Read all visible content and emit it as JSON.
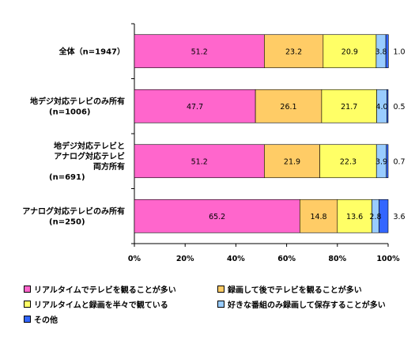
{
  "chart_data": {
    "type": "bar",
    "orientation": "horizontal",
    "stacked": true,
    "categories": [
      "全体（n=1947）",
      "地デジ対応テレビのみ所有\n(n=1006)",
      "地デジ対応テレビと\nアナログ対応テレビ\n両方所有\n(n=691)",
      "アナログ対応テレビのみ所有\n(n=250)"
    ],
    "series": [
      {
        "name": "リアルタイムでテレビを観ることが多い",
        "color": "#ff66cc",
        "values": [
          51.2,
          47.7,
          51.2,
          65.2
        ]
      },
      {
        "name": "録画して後でテレビを観ることが多い",
        "color": "#ffcc66",
        "values": [
          23.2,
          26.1,
          21.9,
          14.8
        ]
      },
      {
        "name": "リアルタイムと録画を半々で観ている",
        "color": "#ffff66",
        "values": [
          20.9,
          21.7,
          22.3,
          13.6
        ]
      },
      {
        "name": "好きな番組のみ録画して保存することが多い",
        "color": "#99ccff",
        "values": [
          3.8,
          4.0,
          3.9,
          2.8
        ]
      },
      {
        "name": "その他",
        "color": "#3366ff",
        "values": [
          1.0,
          0.5,
          0.7,
          3.6
        ]
      }
    ],
    "value_labels": [
      [
        "51.2",
        "23.2",
        "20.9",
        "3.8",
        "1.0"
      ],
      [
        "47.7",
        "26.1",
        "21.7",
        "4.0",
        "0.5"
      ],
      [
        "51.2",
        "21.9",
        "22.3",
        "3.9",
        "0.7"
      ],
      [
        "65.2",
        "14.8",
        "13.6",
        "2.8",
        "3.6"
      ]
    ],
    "xaxis_ticks": [
      "0%",
      "20%",
      "40%",
      "60%",
      "80%",
      "100%"
    ],
    "xlim": [
      0,
      100
    ],
    "grid": false,
    "legend_position": "bottom"
  }
}
